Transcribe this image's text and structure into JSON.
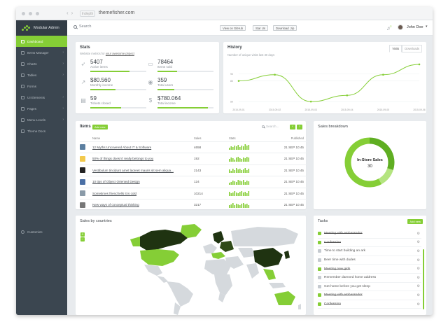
{
  "browser": {
    "url": "themefisher.com",
    "url_left": "Indepth"
  },
  "brand": {
    "name": "Modular Admin"
  },
  "sidebar": {
    "items": [
      {
        "label": "Dashboard",
        "active": true,
        "chevron": false
      },
      {
        "label": "Items Manager",
        "active": false,
        "chevron": true
      },
      {
        "label": "Charts",
        "active": false,
        "chevron": true
      },
      {
        "label": "Tables",
        "active": false,
        "chevron": true
      },
      {
        "label": "Forms",
        "active": false,
        "chevron": false
      },
      {
        "label": "UI Elements",
        "active": false,
        "chevron": true
      },
      {
        "label": "Pages",
        "active": false,
        "chevron": true
      },
      {
        "label": "Menu Levels",
        "active": false,
        "chevron": true
      },
      {
        "label": "Theme Docs",
        "active": false,
        "chevron": false
      }
    ],
    "customize": "Customize"
  },
  "topbar": {
    "search": "Search",
    "buttons": [
      "View on GitHub",
      "Star Us",
      "Download .zip"
    ],
    "notifications": "2",
    "user": "John Doe"
  },
  "stats": {
    "title": "Stats",
    "subtitle_prefix": "Website metrics for",
    "subtitle_link": "your awesome project",
    "items": [
      {
        "icon": "rocket-icon",
        "glyph": "➶",
        "value": "5407",
        "label": "Active items",
        "progress": 0.7
      },
      {
        "icon": "cart-icon",
        "glyph": "▭",
        "value": "78464",
        "label": "Items sold",
        "progress": 0.35
      },
      {
        "icon": "line-chart-icon",
        "glyph": "↗",
        "value": "$80.560",
        "label": "Monthly income",
        "progress": 0.45
      },
      {
        "icon": "users-icon",
        "glyph": "◉",
        "value": "359",
        "label": "Total users",
        "progress": 0.3
      },
      {
        "icon": "list-icon",
        "glyph": "▤",
        "value": "59",
        "label": "Tickets closed",
        "progress": 0.55
      },
      {
        "icon": "dollar-icon",
        "glyph": "$",
        "value": "$780.064",
        "label": "Total income",
        "progress": 0.9
      }
    ]
  },
  "history": {
    "title": "History",
    "subtitle": "Number of unique visits last 30 days",
    "tabs": [
      "Visits",
      "Downloads"
    ],
    "active_tab": "Visits"
  },
  "chart_data": {
    "type": "line",
    "x": [
      "2015-09-01",
      "2015-09-02",
      "2015-09-03",
      "2015-09-04",
      "2015-09-05",
      "2015-09-06"
    ],
    "values": [
      80,
      89,
      50,
      59,
      89,
      104
    ],
    "yticks": [
      50,
      80,
      90
    ],
    "ylim": [
      45,
      106
    ],
    "color": "#85ce36",
    "grid": true
  },
  "items": {
    "title": "Items",
    "add_label": "Add new",
    "search_placeholder": "Search...",
    "pager": [
      "‹",
      "›"
    ],
    "columns": [
      "Name",
      "Sales",
      "Stats",
      "Published"
    ],
    "rows": [
      {
        "name": "12 Myths Uncovered About IT & Software",
        "sales": "4658",
        "published": "21 SEP 10:45",
        "thumb": "#5b7fa0",
        "spark": [
          3,
          5,
          4,
          6,
          5,
          7,
          4,
          6,
          5,
          8,
          6,
          7
        ]
      },
      {
        "name": "50% of things doesn't really belongs to you",
        "sales": "192",
        "published": "21 SEP 10:45",
        "thumb": "#f2c94c",
        "spark": [
          4,
          6,
          5,
          3,
          6,
          7,
          5,
          4,
          6,
          5,
          7,
          6
        ]
      },
      {
        "name": "Vestibulum tincidunt amet laoreet mauris sit sem aliqua...",
        "sales": "2143",
        "published": "21 SEP 10:45",
        "thumb": "#222222",
        "spark": [
          5,
          3,
          6,
          4,
          7,
          5,
          6,
          4,
          5,
          7,
          4,
          6
        ]
      },
      {
        "name": "10 tips of Object Oriented Design",
        "sales": "124",
        "published": "21 SEP 10:45",
        "thumb": "#4a6fa5",
        "spark": [
          3,
          4,
          6,
          5,
          4,
          7,
          6,
          5,
          7,
          4,
          6,
          5
        ]
      },
      {
        "name": "Sometimes friend tells it is cold",
        "sales": "10214",
        "published": "21 SEP 10:45",
        "thumb": "#8a9aa8",
        "spark": [
          6,
          4,
          5,
          7,
          5,
          4,
          6,
          7,
          5,
          6,
          4,
          7
        ]
      },
      {
        "name": "New ways of conceptual thinking",
        "sales": "3217",
        "published": "21 SEP 10:45",
        "thumb": "#777777",
        "spark": [
          4,
          5,
          7,
          4,
          6,
          5,
          4,
          6,
          7,
          5,
          6,
          4
        ]
      }
    ]
  },
  "sales_breakdown": {
    "title": "Sales breakdown",
    "center_label": "In-Store Sales",
    "center_value": "30",
    "slices": [
      {
        "value": 30,
        "color": "#5fae22"
      },
      {
        "value": 12,
        "color": "#b4e47f"
      },
      {
        "value": 58,
        "color": "#85ce36"
      }
    ]
  },
  "sales_by_countries": {
    "title": "Sales by countries",
    "zoom": [
      "+",
      "−"
    ]
  },
  "tasks": {
    "title": "Tasks",
    "add_label": "Add new",
    "items": [
      {
        "label": "Meeting with embassador",
        "done": true
      },
      {
        "label": "Confession",
        "done": true
      },
      {
        "label": "Time to start building an ark",
        "done": false
      },
      {
        "label": "Beer time with dudes",
        "done": false
      },
      {
        "label": "Meeting new girls",
        "done": true
      },
      {
        "label": "Remember damned home address",
        "done": false
      },
      {
        "label": "Get home before you get sleep",
        "done": false
      },
      {
        "label": "Meeting with embassador",
        "done": true
      },
      {
        "label": "Confession",
        "done": true
      }
    ]
  }
}
